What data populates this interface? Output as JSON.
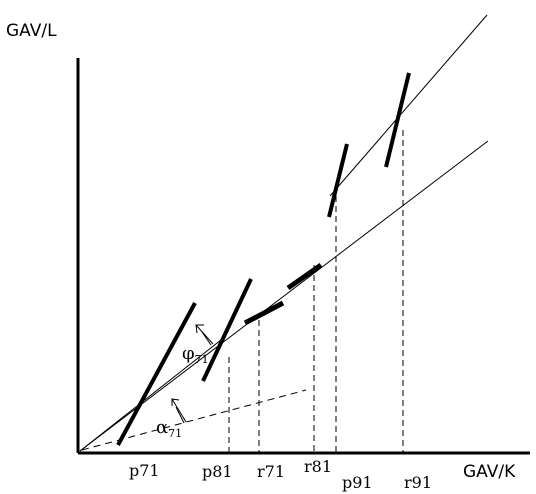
{
  "axes": {
    "y_label": "GAV/L",
    "x_label": "GAV/K"
  },
  "x_ticks": [
    "p71",
    "p81",
    "r71",
    "r81",
    "p91",
    "r91"
  ],
  "angles": {
    "phi": {
      "symbol": "φ",
      "subscript": "71"
    },
    "alpha": {
      "symbol": "α",
      "subscript": "71"
    }
  },
  "colors": {
    "ink": "#000000",
    "background": "#ffffff"
  }
}
